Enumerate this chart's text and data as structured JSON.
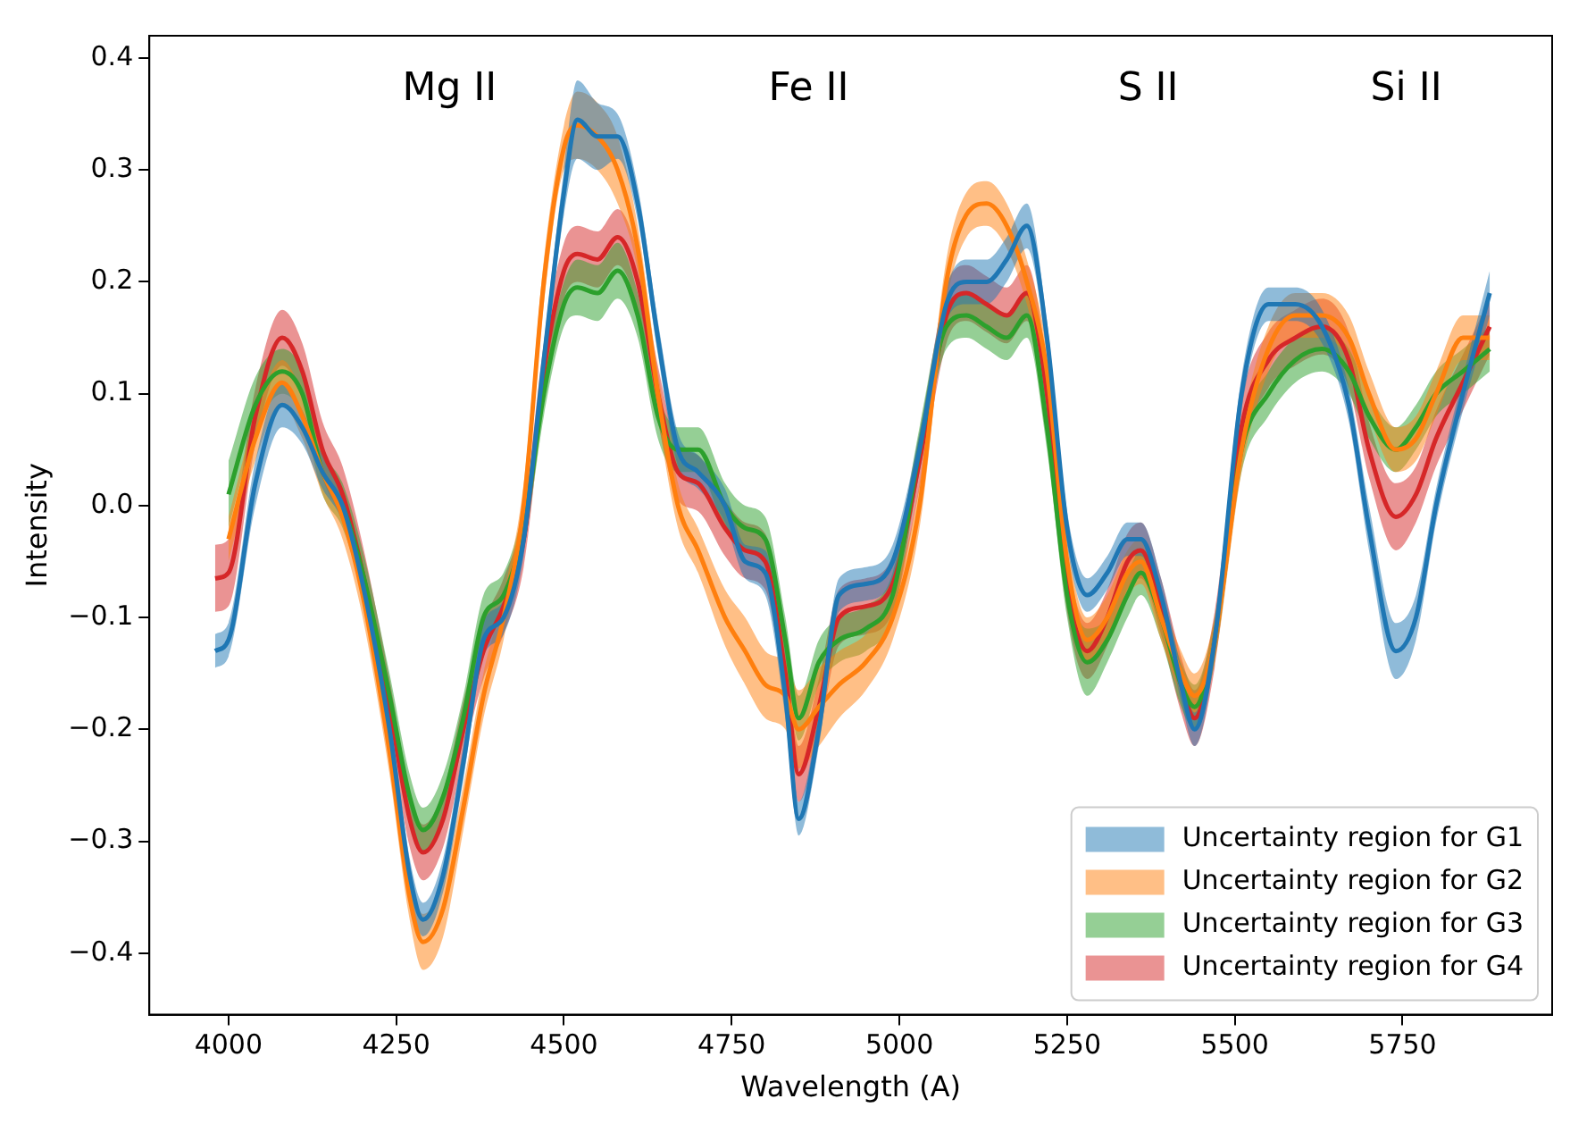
{
  "chart_data": {
    "type": "line",
    "xlabel": "Wavelength (A)",
    "ylabel": "Intensity",
    "x": [
      3980,
      4000,
      4040,
      4080,
      4110,
      4140,
      4170,
      4200,
      4240,
      4270,
      4290,
      4320,
      4350,
      4380,
      4410,
      4440,
      4470,
      4500,
      4520,
      4550,
      4580,
      4610,
      4640,
      4670,
      4700,
      4740,
      4770,
      4800,
      4830,
      4850,
      4880,
      4910,
      4950,
      4990,
      5030,
      5070,
      5100,
      5130,
      5160,
      5190,
      5220,
      5250,
      5280,
      5310,
      5340,
      5360,
      5390,
      5420,
      5440,
      5470,
      5510,
      5550,
      5590,
      5630,
      5670,
      5700,
      5740,
      5770,
      5800,
      5840,
      5880
    ],
    "series": [
      {
        "name": "Uncertainty region for G1",
        "color": "#1f77b4",
        "values": [
          -0.13,
          -0.12,
          0.02,
          0.09,
          0.07,
          0.03,
          0.0,
          -0.07,
          -0.2,
          -0.33,
          -0.37,
          -0.33,
          -0.23,
          -0.12,
          -0.1,
          -0.03,
          0.13,
          0.28,
          0.345,
          0.33,
          0.33,
          0.27,
          0.15,
          0.05,
          0.03,
          0.0,
          -0.05,
          -0.06,
          -0.17,
          -0.28,
          -0.2,
          -0.08,
          -0.07,
          -0.05,
          0.05,
          0.18,
          0.2,
          0.2,
          0.22,
          0.25,
          0.15,
          -0.02,
          -0.08,
          -0.06,
          -0.03,
          -0.03,
          -0.08,
          -0.16,
          -0.2,
          -0.12,
          0.1,
          0.18,
          0.18,
          0.16,
          0.09,
          -0.02,
          -0.13,
          -0.1,
          0.0,
          0.1,
          0.19
        ],
        "lower": [
          -0.145,
          -0.135,
          0.0,
          0.07,
          0.055,
          0.015,
          -0.015,
          -0.085,
          -0.215,
          -0.345,
          -0.385,
          -0.345,
          -0.245,
          -0.135,
          -0.115,
          -0.045,
          0.115,
          0.26,
          0.31,
          0.3,
          0.31,
          0.255,
          0.135,
          0.035,
          0.015,
          -0.015,
          -0.065,
          -0.08,
          -0.19,
          -0.295,
          -0.215,
          -0.095,
          -0.085,
          -0.065,
          0.035,
          0.165,
          0.18,
          0.18,
          0.2,
          0.23,
          0.135,
          -0.035,
          -0.095,
          -0.075,
          -0.045,
          -0.045,
          -0.095,
          -0.175,
          -0.215,
          -0.135,
          0.085,
          0.165,
          0.165,
          0.145,
          0.075,
          -0.04,
          -0.155,
          -0.12,
          -0.015,
          0.085,
          0.17
        ],
        "upper": [
          -0.115,
          -0.105,
          0.04,
          0.11,
          0.085,
          0.045,
          0.015,
          -0.055,
          -0.185,
          -0.315,
          -0.355,
          -0.315,
          -0.215,
          -0.105,
          -0.085,
          -0.015,
          0.145,
          0.3,
          0.38,
          0.36,
          0.35,
          0.285,
          0.165,
          0.065,
          0.045,
          0.015,
          -0.035,
          -0.04,
          -0.15,
          -0.265,
          -0.185,
          -0.065,
          -0.055,
          -0.035,
          0.065,
          0.195,
          0.22,
          0.22,
          0.24,
          0.27,
          0.165,
          -0.005,
          -0.065,
          -0.045,
          -0.015,
          -0.015,
          -0.065,
          -0.145,
          -0.185,
          -0.105,
          0.115,
          0.195,
          0.195,
          0.175,
          0.105,
          0.0,
          -0.105,
          -0.08,
          0.015,
          0.115,
          0.21
        ]
      },
      {
        "name": "Uncertainty region for G2",
        "color": "#ff7f0e",
        "values": [
          null,
          -0.03,
          0.06,
          0.11,
          0.08,
          0.03,
          -0.01,
          -0.08,
          -0.22,
          -0.35,
          -0.39,
          -0.36,
          -0.27,
          -0.17,
          -0.1,
          0.0,
          0.2,
          0.32,
          0.34,
          0.33,
          0.3,
          0.23,
          0.1,
          0.0,
          -0.04,
          -0.1,
          -0.13,
          -0.16,
          -0.17,
          -0.2,
          -0.18,
          -0.16,
          -0.14,
          -0.1,
          0.0,
          0.2,
          0.26,
          0.27,
          0.25,
          0.2,
          0.12,
          -0.05,
          -0.12,
          -0.1,
          -0.06,
          -0.05,
          -0.1,
          -0.15,
          -0.17,
          -0.12,
          0.05,
          0.14,
          0.17,
          0.17,
          0.15,
          0.1,
          0.05,
          0.06,
          0.1,
          0.15,
          0.15
        ],
        "lower": [
          null,
          -0.05,
          0.04,
          0.09,
          0.06,
          0.01,
          -0.03,
          -0.1,
          -0.24,
          -0.37,
          -0.415,
          -0.385,
          -0.29,
          -0.19,
          -0.12,
          -0.02,
          0.18,
          0.3,
          0.31,
          0.3,
          0.27,
          0.21,
          0.08,
          -0.02,
          -0.06,
          -0.125,
          -0.16,
          -0.19,
          -0.2,
          -0.235,
          -0.215,
          -0.19,
          -0.165,
          -0.12,
          -0.02,
          0.18,
          0.24,
          0.25,
          0.23,
          0.18,
          0.1,
          -0.07,
          -0.14,
          -0.12,
          -0.08,
          -0.07,
          -0.12,
          -0.17,
          -0.19,
          -0.14,
          0.03,
          0.12,
          0.15,
          0.15,
          0.13,
          0.08,
          0.03,
          0.04,
          0.08,
          0.13,
          0.13
        ],
        "upper": [
          null,
          -0.01,
          0.08,
          0.13,
          0.1,
          0.05,
          0.01,
          -0.06,
          -0.2,
          -0.33,
          -0.365,
          -0.335,
          -0.25,
          -0.15,
          -0.08,
          0.02,
          0.22,
          0.34,
          0.37,
          0.36,
          0.33,
          0.25,
          0.12,
          0.02,
          -0.02,
          -0.075,
          -0.1,
          -0.13,
          -0.14,
          -0.165,
          -0.145,
          -0.13,
          -0.115,
          -0.08,
          0.02,
          0.22,
          0.28,
          0.29,
          0.27,
          0.22,
          0.14,
          -0.03,
          -0.1,
          -0.08,
          -0.04,
          -0.03,
          -0.08,
          -0.13,
          -0.15,
          -0.1,
          0.07,
          0.16,
          0.19,
          0.19,
          0.17,
          0.12,
          0.07,
          0.08,
          0.12,
          0.17,
          0.17
        ]
      },
      {
        "name": "Uncertainty region for G3",
        "color": "#2ca02c",
        "values": [
          null,
          0.01,
          0.09,
          0.12,
          0.1,
          0.03,
          0.0,
          -0.06,
          -0.17,
          -0.26,
          -0.29,
          -0.26,
          -0.19,
          -0.1,
          -0.08,
          -0.02,
          0.1,
          0.18,
          0.195,
          0.19,
          0.21,
          0.17,
          0.08,
          0.05,
          0.05,
          0.0,
          -0.02,
          -0.03,
          -0.12,
          -0.19,
          -0.14,
          -0.12,
          -0.11,
          -0.08,
          0.05,
          0.16,
          0.17,
          0.16,
          0.15,
          0.17,
          0.07,
          -0.08,
          -0.14,
          -0.12,
          -0.08,
          -0.06,
          -0.1,
          -0.16,
          -0.18,
          -0.12,
          0.05,
          0.1,
          0.13,
          0.14,
          0.12,
          0.08,
          0.05,
          0.07,
          0.1,
          0.12,
          0.14
        ],
        "lower": [
          null,
          -0.02,
          0.065,
          0.1,
          0.08,
          0.01,
          -0.02,
          -0.08,
          -0.19,
          -0.28,
          -0.31,
          -0.28,
          -0.21,
          -0.12,
          -0.1,
          -0.04,
          0.08,
          0.16,
          0.17,
          0.165,
          0.185,
          0.15,
          0.06,
          0.03,
          0.03,
          -0.02,
          -0.04,
          -0.05,
          -0.14,
          -0.21,
          -0.16,
          -0.14,
          -0.13,
          -0.1,
          0.03,
          0.14,
          0.15,
          0.14,
          0.13,
          0.15,
          0.05,
          -0.1,
          -0.17,
          -0.14,
          -0.1,
          -0.08,
          -0.12,
          -0.18,
          -0.2,
          -0.14,
          0.03,
          0.08,
          0.11,
          0.12,
          0.1,
          0.06,
          0.03,
          0.05,
          0.08,
          0.1,
          0.12
        ],
        "upper": [
          null,
          0.04,
          0.115,
          0.14,
          0.12,
          0.05,
          0.02,
          -0.04,
          -0.15,
          -0.24,
          -0.27,
          -0.24,
          -0.17,
          -0.08,
          -0.06,
          0.0,
          0.12,
          0.2,
          0.22,
          0.215,
          0.235,
          0.19,
          0.1,
          0.07,
          0.07,
          0.02,
          0.0,
          -0.01,
          -0.1,
          -0.17,
          -0.12,
          -0.1,
          -0.09,
          -0.06,
          0.07,
          0.18,
          0.19,
          0.18,
          0.17,
          0.19,
          0.09,
          -0.06,
          -0.11,
          -0.1,
          -0.06,
          -0.04,
          -0.08,
          -0.14,
          -0.16,
          -0.1,
          0.07,
          0.12,
          0.15,
          0.16,
          0.14,
          0.1,
          0.07,
          0.09,
          0.12,
          0.14,
          0.16
        ]
      },
      {
        "name": "Uncertainty region for G4",
        "color": "#d62728",
        "values": [
          -0.065,
          -0.06,
          0.08,
          0.15,
          0.12,
          0.05,
          0.01,
          -0.06,
          -0.18,
          -0.28,
          -0.31,
          -0.28,
          -0.2,
          -0.13,
          -0.09,
          -0.03,
          0.12,
          0.21,
          0.225,
          0.22,
          0.24,
          0.2,
          0.1,
          0.03,
          0.02,
          -0.02,
          -0.04,
          -0.05,
          -0.15,
          -0.24,
          -0.18,
          -0.1,
          -0.09,
          -0.07,
          0.04,
          0.17,
          0.19,
          0.18,
          0.17,
          0.19,
          0.1,
          -0.07,
          -0.13,
          -0.1,
          -0.05,
          -0.04,
          -0.09,
          -0.16,
          -0.19,
          -0.12,
          0.07,
          0.13,
          0.15,
          0.16,
          0.13,
          0.05,
          -0.01,
          0.01,
          0.06,
          0.11,
          0.16
        ],
        "lower": [
          -0.095,
          -0.09,
          0.055,
          0.125,
          0.095,
          0.025,
          -0.015,
          -0.085,
          -0.205,
          -0.305,
          -0.335,
          -0.305,
          -0.225,
          -0.155,
          -0.115,
          -0.055,
          0.095,
          0.185,
          0.2,
          0.195,
          0.215,
          0.175,
          0.075,
          0.005,
          -0.005,
          -0.045,
          -0.065,
          -0.075,
          -0.175,
          -0.265,
          -0.205,
          -0.125,
          -0.115,
          -0.095,
          0.015,
          0.145,
          0.165,
          0.155,
          0.145,
          0.165,
          0.075,
          -0.095,
          -0.155,
          -0.125,
          -0.075,
          -0.065,
          -0.115,
          -0.185,
          -0.215,
          -0.145,
          0.045,
          0.105,
          0.125,
          0.135,
          0.105,
          0.025,
          -0.04,
          -0.015,
          0.035,
          0.085,
          0.135
        ],
        "upper": [
          -0.035,
          -0.03,
          0.105,
          0.175,
          0.145,
          0.075,
          0.035,
          -0.035,
          -0.155,
          -0.255,
          -0.285,
          -0.255,
          -0.175,
          -0.105,
          -0.065,
          -0.005,
          0.145,
          0.235,
          0.25,
          0.245,
          0.265,
          0.225,
          0.125,
          0.055,
          0.045,
          0.005,
          -0.015,
          -0.025,
          -0.125,
          -0.215,
          -0.155,
          -0.075,
          -0.065,
          -0.045,
          0.065,
          0.195,
          0.215,
          0.205,
          0.195,
          0.215,
          0.125,
          -0.045,
          -0.105,
          -0.075,
          -0.025,
          -0.015,
          -0.065,
          -0.135,
          -0.165,
          -0.095,
          0.095,
          0.155,
          0.175,
          0.185,
          0.155,
          0.075,
          0.02,
          0.035,
          0.085,
          0.135,
          0.185
        ]
      }
    ],
    "xlim": [
      3882,
      5973
    ],
    "xticks": [
      4000,
      4250,
      4500,
      4750,
      5000,
      5250,
      5500,
      5750
    ],
    "ylim": [
      -0.455,
      0.42
    ],
    "yticks": [
      {
        "value": -0.4,
        "label": "−0.4"
      },
      {
        "value": -0.3,
        "label": "−0.3"
      },
      {
        "value": -0.2,
        "label": "−0.2"
      },
      {
        "value": -0.1,
        "label": "−0.1"
      },
      {
        "value": 0,
        "label": "0.0"
      },
      0.1,
      0.2,
      0.3,
      0.4
    ],
    "annotations": [
      "Mg II",
      "Fe II",
      "S II",
      "Si II"
    ],
    "legend": "bottom right",
    "marker": "none",
    "line_style": "solid",
    "grid": false
  }
}
